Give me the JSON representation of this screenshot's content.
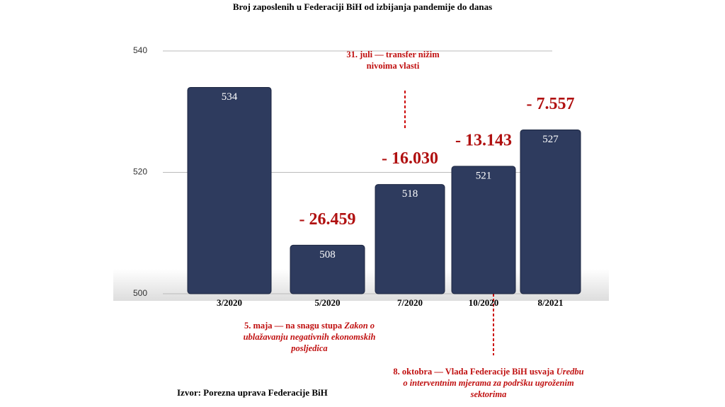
{
  "chart_data": {
    "type": "bar",
    "title": "Broj zaposlenih u Federaciji BiH od izbijanja pandemije do danas",
    "categories": [
      "3/2020",
      "5/2020",
      "7/2020",
      "10/2020",
      "8/2021"
    ],
    "values": [
      534,
      508,
      518,
      521,
      527
    ],
    "change_labels": [
      null,
      "- 26.459",
      "- 16.030",
      "- 13.143",
      "- 7.557"
    ],
    "color": "#2e3b5e",
    "ylim": [
      500,
      540
    ],
    "yticks": [
      500,
      520,
      540
    ],
    "grid": true,
    "notes": [
      {
        "lines": [
          [
            {
              "text": "31. juli — transfer nižim",
              "italic": false
            }
          ],
          [
            {
              "text": "nivoima vlasti",
              "italic": false
            }
          ]
        ]
      },
      {
        "lines": [
          [
            {
              "text": "5. maja — na snagu stupa ",
              "italic": false
            },
            {
              "text": "Zakon o",
              "italic": true
            }
          ],
          [
            {
              "text": "ublažavanju negativnih ekonomskih",
              "italic": true
            }
          ],
          [
            {
              "text": "posljedica",
              "italic": true
            }
          ]
        ]
      },
      {
        "lines": [
          [
            {
              "text": "8. oktobra — Vlada Federacije BiH usvaja ",
              "italic": false
            },
            {
              "text": "Uredbu",
              "italic": true
            }
          ],
          [
            {
              "text": "o interventnim mjerama za podršku ugroženim",
              "italic": true
            }
          ],
          [
            {
              "text": "sektorima",
              "italic": true
            }
          ]
        ]
      }
    ],
    "source": "Izvor: Porezna uprava Federacije BiH"
  }
}
